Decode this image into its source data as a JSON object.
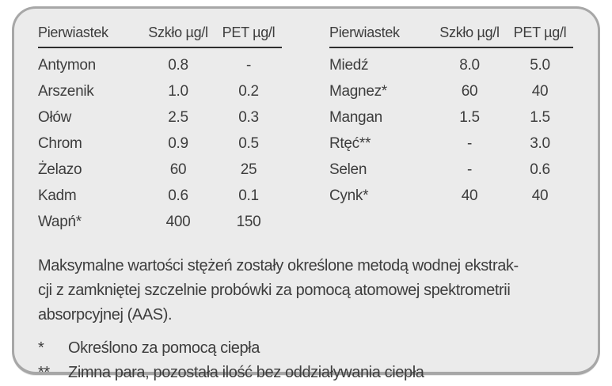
{
  "tables": [
    {
      "headers": [
        "Pierwiastek",
        "Szkło µg/l",
        "PET µg/l"
      ],
      "rows": [
        [
          "Antymon",
          "0.8",
          "-"
        ],
        [
          "Arszenik",
          "1.0",
          "0.2"
        ],
        [
          "Ołów",
          "2.5",
          "0.3"
        ],
        [
          "Chrom",
          "0.9",
          "0.5"
        ],
        [
          "Żelazo",
          "60",
          "25"
        ],
        [
          "Kadm",
          "0.6",
          "0.1"
        ],
        [
          "Wapń*",
          "400",
          "150"
        ]
      ]
    },
    {
      "headers": [
        "Pierwiastek",
        "Szkło µg/l",
        "PET µg/l"
      ],
      "rows": [
        [
          "Miedź",
          "8.0",
          "5.0"
        ],
        [
          "Magnez*",
          "60",
          "40"
        ],
        [
          "Mangan",
          "1.5",
          "1.5"
        ],
        [
          "Rtęć**",
          "-",
          "3.0"
        ],
        [
          "Selen",
          "-",
          "0.6"
        ],
        [
          "Cynk*",
          "40",
          "40"
        ]
      ]
    }
  ],
  "note_lines": [
    "Maksymalne wartości stężeń zostały określone metodą wodnej ekstrak-",
    "cji z zamkniętej szczelnie probówki za pomocą atomowej spektrometrii",
    "absorpcyjnej (AAS)."
  ],
  "footnotes": [
    {
      "marker": "*",
      "text": "Określono za pomocą ciepła"
    },
    {
      "marker": "**",
      "text": "Zimna para, pozostała ilość bez oddziaływania ciepła"
    }
  ],
  "colors": {
    "card_background": "#ebebeb",
    "card_border": "#a7a7a7",
    "text": "#3d3d3d",
    "header_rule": "#2e2e2e"
  }
}
